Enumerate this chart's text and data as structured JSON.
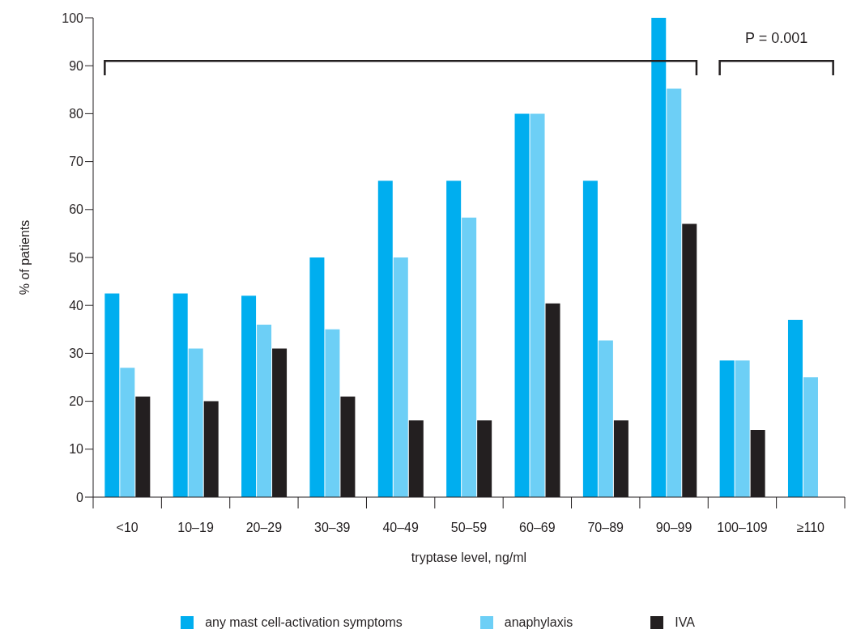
{
  "chart_data": {
    "type": "bar",
    "xlabel": "tryptase level, ng/ml",
    "ylabel": "% of patients",
    "categories": [
      "<10",
      "10–19",
      "20–29",
      "30–39",
      "40–49",
      "50–59",
      "60–69",
      "70–89",
      "90–99",
      "100–109",
      "≥110"
    ],
    "series": [
      {
        "name": "any mast cell-activation symptoms",
        "color": "#00aeef",
        "values": [
          42.5,
          42.5,
          42,
          50,
          66,
          66,
          80,
          66,
          100,
          28.5,
          37
        ]
      },
      {
        "name": "anaphylaxis",
        "color": "#6dcff6",
        "values": [
          27,
          31,
          36,
          35,
          50,
          58.3,
          80,
          32.7,
          85.2,
          28.5,
          25
        ]
      },
      {
        "name": "IVA",
        "color": "#231f20",
        "values": [
          21,
          20,
          31,
          21,
          16,
          16,
          40.4,
          16,
          57,
          14,
          null
        ]
      }
    ],
    "ylim": [
      0,
      100
    ],
    "yticks": [
      0,
      10,
      20,
      30,
      40,
      50,
      60,
      70,
      80,
      90,
      100
    ],
    "annotations": [
      "P = 0.001"
    ],
    "grid": false,
    "legend": "bottom"
  }
}
